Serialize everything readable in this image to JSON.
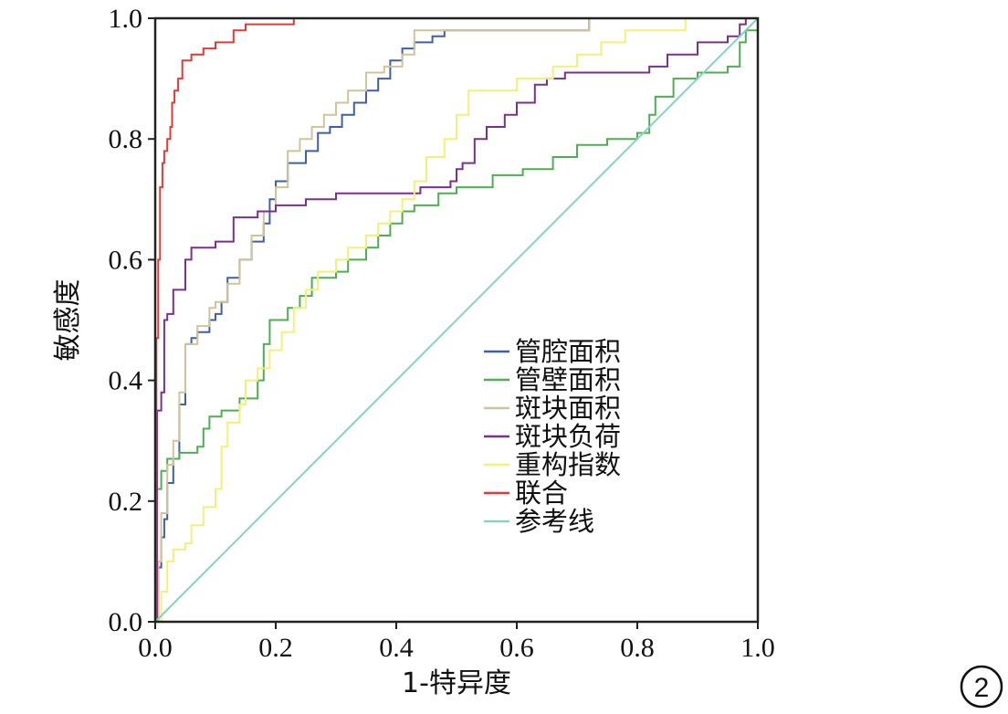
{
  "chart_data": {
    "type": "line",
    "xlabel": "1-特异度",
    "ylabel": "敏感度",
    "xlim": [
      0,
      1
    ],
    "ylim": [
      0,
      1
    ],
    "x_ticks": [
      "0.0",
      "0.2",
      "0.4",
      "0.6",
      "0.8",
      "1.0"
    ],
    "y_ticks": [
      "0.0",
      "0.2",
      "0.4",
      "0.6",
      "0.8",
      "1.0"
    ],
    "grid": false,
    "legend_position": "lower-right",
    "panel_label": "2",
    "series": [
      {
        "name": "管腔面积",
        "color": "#3f5fa8",
        "points": [
          [
            0,
            0
          ],
          [
            0.005,
            0.09
          ],
          [
            0.01,
            0.14
          ],
          [
            0.015,
            0.17
          ],
          [
            0.02,
            0.23
          ],
          [
            0.03,
            0.27
          ],
          [
            0.04,
            0.36
          ],
          [
            0.05,
            0.46
          ],
          [
            0.06,
            0.47
          ],
          [
            0.07,
            0.48
          ],
          [
            0.09,
            0.5
          ],
          [
            0.1,
            0.51
          ],
          [
            0.11,
            0.53
          ],
          [
            0.12,
            0.57
          ],
          [
            0.14,
            0.6
          ],
          [
            0.16,
            0.63
          ],
          [
            0.18,
            0.66
          ],
          [
            0.19,
            0.7
          ],
          [
            0.2,
            0.73
          ],
          [
            0.22,
            0.76
          ],
          [
            0.25,
            0.78
          ],
          [
            0.27,
            0.81
          ],
          [
            0.29,
            0.82
          ],
          [
            0.31,
            0.84
          ],
          [
            0.33,
            0.86
          ],
          [
            0.35,
            0.88
          ],
          [
            0.37,
            0.9
          ],
          [
            0.39,
            0.93
          ],
          [
            0.41,
            0.95
          ],
          [
            0.43,
            0.96
          ],
          [
            0.46,
            0.97
          ],
          [
            0.48,
            0.98
          ],
          [
            0.72,
            0.98
          ],
          [
            0.72,
            1.0
          ],
          [
            1,
            1
          ]
        ]
      },
      {
        "name": "管壁面积",
        "color": "#4caf50",
        "points": [
          [
            0,
            0
          ],
          [
            0.003,
            0.22
          ],
          [
            0.01,
            0.25
          ],
          [
            0.02,
            0.27
          ],
          [
            0.04,
            0.28
          ],
          [
            0.07,
            0.29
          ],
          [
            0.08,
            0.32
          ],
          [
            0.09,
            0.34
          ],
          [
            0.11,
            0.35
          ],
          [
            0.14,
            0.37
          ],
          [
            0.17,
            0.4
          ],
          [
            0.18,
            0.46
          ],
          [
            0.19,
            0.5
          ],
          [
            0.22,
            0.52
          ],
          [
            0.24,
            0.54
          ],
          [
            0.26,
            0.57
          ],
          [
            0.3,
            0.58
          ],
          [
            0.32,
            0.6
          ],
          [
            0.35,
            0.62
          ],
          [
            0.37,
            0.64
          ],
          [
            0.39,
            0.66
          ],
          [
            0.41,
            0.68
          ],
          [
            0.43,
            0.69
          ],
          [
            0.47,
            0.71
          ],
          [
            0.5,
            0.72
          ],
          [
            0.56,
            0.74
          ],
          [
            0.61,
            0.75
          ],
          [
            0.66,
            0.77
          ],
          [
            0.7,
            0.79
          ],
          [
            0.75,
            0.8
          ],
          [
            0.8,
            0.81
          ],
          [
            0.82,
            0.84
          ],
          [
            0.83,
            0.87
          ],
          [
            0.86,
            0.9
          ],
          [
            0.9,
            0.91
          ],
          [
            0.95,
            0.92
          ],
          [
            0.97,
            0.96
          ],
          [
            0.98,
            0.98
          ],
          [
            1,
            1
          ]
        ]
      },
      {
        "name": "斑块面积",
        "color": "#cfc49a",
        "points": [
          [
            0,
            0
          ],
          [
            0.005,
            0.1
          ],
          [
            0.01,
            0.18
          ],
          [
            0.02,
            0.26
          ],
          [
            0.03,
            0.3
          ],
          [
            0.04,
            0.38
          ],
          [
            0.05,
            0.46
          ],
          [
            0.07,
            0.49
          ],
          [
            0.09,
            0.52
          ],
          [
            0.1,
            0.53
          ],
          [
            0.12,
            0.56
          ],
          [
            0.14,
            0.6
          ],
          [
            0.16,
            0.64
          ],
          [
            0.18,
            0.68
          ],
          [
            0.2,
            0.72
          ],
          [
            0.22,
            0.78
          ],
          [
            0.24,
            0.8
          ],
          [
            0.26,
            0.82
          ],
          [
            0.28,
            0.84
          ],
          [
            0.3,
            0.86
          ],
          [
            0.32,
            0.88
          ],
          [
            0.35,
            0.91
          ],
          [
            0.38,
            0.92
          ],
          [
            0.41,
            0.94
          ],
          [
            0.43,
            0.98
          ],
          [
            0.45,
            0.98
          ],
          [
            0.7,
            0.98
          ],
          [
            0.72,
            1.0
          ],
          [
            1,
            1
          ]
        ]
      },
      {
        "name": "斑块负荷",
        "color": "#7b2f8e",
        "points": [
          [
            0,
            0
          ],
          [
            0.003,
            0.35
          ],
          [
            0.01,
            0.38
          ],
          [
            0.015,
            0.5
          ],
          [
            0.02,
            0.51
          ],
          [
            0.03,
            0.55
          ],
          [
            0.05,
            0.6
          ],
          [
            0.06,
            0.62
          ],
          [
            0.1,
            0.63
          ],
          [
            0.13,
            0.67
          ],
          [
            0.17,
            0.68
          ],
          [
            0.2,
            0.69
          ],
          [
            0.25,
            0.7
          ],
          [
            0.3,
            0.71
          ],
          [
            0.4,
            0.71
          ],
          [
            0.44,
            0.72
          ],
          [
            0.49,
            0.73
          ],
          [
            0.5,
            0.75
          ],
          [
            0.51,
            0.76
          ],
          [
            0.53,
            0.8
          ],
          [
            0.55,
            0.82
          ],
          [
            0.58,
            0.84
          ],
          [
            0.6,
            0.86
          ],
          [
            0.63,
            0.89
          ],
          [
            0.65,
            0.9
          ],
          [
            0.68,
            0.91
          ],
          [
            0.75,
            0.91
          ],
          [
            0.82,
            0.92
          ],
          [
            0.85,
            0.94
          ],
          [
            0.9,
            0.96
          ],
          [
            0.95,
            0.97
          ],
          [
            0.97,
            0.99
          ],
          [
            0.98,
            1.0
          ],
          [
            1,
            1
          ]
        ]
      },
      {
        "name": "重构指数",
        "color": "#f3f078",
        "points": [
          [
            0,
            0
          ],
          [
            0.01,
            0.05
          ],
          [
            0.02,
            0.1
          ],
          [
            0.03,
            0.12
          ],
          [
            0.05,
            0.13
          ],
          [
            0.06,
            0.16
          ],
          [
            0.08,
            0.19
          ],
          [
            0.1,
            0.22
          ],
          [
            0.11,
            0.29
          ],
          [
            0.12,
            0.33
          ],
          [
            0.14,
            0.36
          ],
          [
            0.15,
            0.4
          ],
          [
            0.17,
            0.42
          ],
          [
            0.19,
            0.45
          ],
          [
            0.21,
            0.48
          ],
          [
            0.23,
            0.52
          ],
          [
            0.25,
            0.55
          ],
          [
            0.27,
            0.58
          ],
          [
            0.3,
            0.6
          ],
          [
            0.32,
            0.62
          ],
          [
            0.35,
            0.64
          ],
          [
            0.37,
            0.66
          ],
          [
            0.39,
            0.68
          ],
          [
            0.41,
            0.7
          ],
          [
            0.43,
            0.73
          ],
          [
            0.45,
            0.77
          ],
          [
            0.48,
            0.8
          ],
          [
            0.5,
            0.84
          ],
          [
            0.52,
            0.88
          ],
          [
            0.55,
            0.88
          ],
          [
            0.6,
            0.9
          ],
          [
            0.63,
            0.9
          ],
          [
            0.66,
            0.92
          ],
          [
            0.7,
            0.94
          ],
          [
            0.74,
            0.96
          ],
          [
            0.78,
            0.98
          ],
          [
            0.88,
            1.0
          ],
          [
            1,
            1
          ]
        ]
      },
      {
        "name": "联合",
        "color": "#e53935",
        "points": [
          [
            0,
            0
          ],
          [
            0.002,
            0.47
          ],
          [
            0.005,
            0.6
          ],
          [
            0.008,
            0.72
          ],
          [
            0.012,
            0.76
          ],
          [
            0.015,
            0.78
          ],
          [
            0.02,
            0.8
          ],
          [
            0.025,
            0.82
          ],
          [
            0.028,
            0.86
          ],
          [
            0.032,
            0.88
          ],
          [
            0.038,
            0.9
          ],
          [
            0.045,
            0.93
          ],
          [
            0.06,
            0.94
          ],
          [
            0.08,
            0.95
          ],
          [
            0.1,
            0.96
          ],
          [
            0.13,
            0.98
          ],
          [
            0.15,
            0.99
          ],
          [
            0.23,
            1.0
          ],
          [
            1,
            1
          ]
        ]
      },
      {
        "name": "参考线",
        "color": "#86d2c4",
        "points": [
          [
            0,
            0
          ],
          [
            1,
            1
          ]
        ]
      }
    ]
  }
}
